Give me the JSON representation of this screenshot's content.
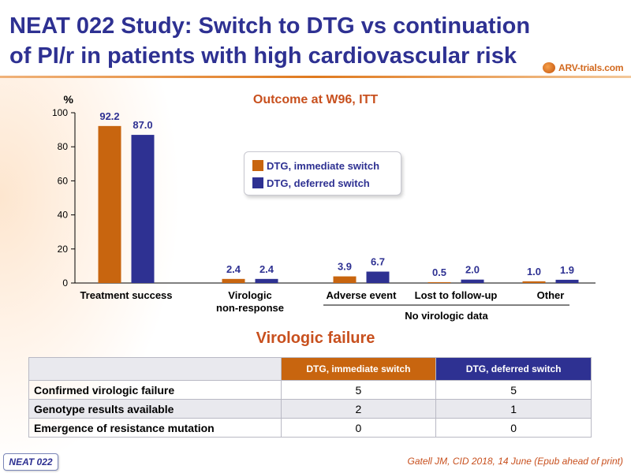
{
  "header": {
    "title_line1": "NEAT 022 Study: Switch to DTG vs continuation",
    "title_line2": "of PI/r in patients with high cardiovascular risk",
    "logo_text": "ARV-trials.com"
  },
  "chart_data": {
    "type": "bar",
    "title": "Outcome at W96, ITT",
    "ylabel": "%",
    "ylim": [
      0,
      100
    ],
    "yticks": [
      0,
      20,
      40,
      60,
      80,
      100
    ],
    "categories": [
      "Treatment success",
      "Virologic non-response",
      "Adverse event",
      "Lost to follow-up",
      "Other"
    ],
    "category_label_lines": [
      [
        "Treatment success"
      ],
      [
        "Virologic",
        "non-response"
      ],
      [
        "Adverse event"
      ],
      [
        "Lost to follow-up"
      ],
      [
        "Other"
      ]
    ],
    "series": [
      {
        "name": "DTG, immediate switch",
        "color": "#c8650f",
        "values": [
          92.2,
          2.4,
          3.9,
          0.5,
          1.0
        ],
        "labels": [
          "92.2",
          "2.4",
          "3.9",
          "0.5",
          "1.0"
        ]
      },
      {
        "name": "DTG, deferred switch",
        "color": "#2e3192",
        "values": [
          87.0,
          2.4,
          6.7,
          2.0,
          1.9
        ],
        "labels": [
          "87.0",
          "2.4",
          "6.7",
          "2.0",
          "1.9"
        ]
      }
    ],
    "group_annotation": "No virologic data",
    "legend_position": "center",
    "grid": false
  },
  "legend": {
    "immediate": "DTG, immediate switch",
    "deferred": "DTG, deferred switch"
  },
  "virologic_failure": {
    "title": "Virologic failure",
    "headers": [
      "",
      "DTG, immediate switch",
      "DTG, deferred switch"
    ],
    "rows": [
      {
        "label": "Confirmed virologic failure",
        "immediate": "5",
        "deferred": "5"
      },
      {
        "label": "Genotype results available",
        "immediate": "2",
        "deferred": "1"
      },
      {
        "label": "Emergence of resistance mutation",
        "immediate": "0",
        "deferred": "0"
      }
    ]
  },
  "footer": {
    "badge": "NEAT 022",
    "citation": "Gatell JM, CID 2018, 14 June (Epub ahead of print)"
  },
  "colors": {
    "brand_blue": "#2e3192",
    "brand_orange": "#c8650f",
    "accent_red": "#c8501e"
  }
}
